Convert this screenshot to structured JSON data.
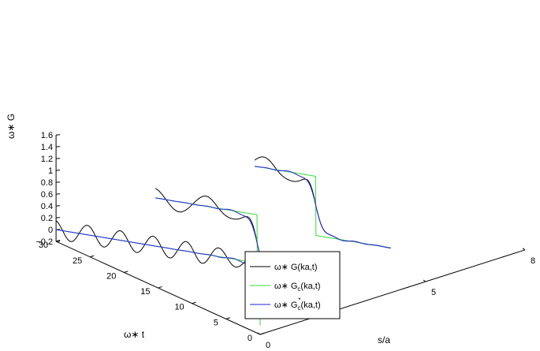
{
  "chart_data": {
    "type": "line",
    "title": "",
    "xlabel": "s/a",
    "ylabel": "ω∗ t",
    "zlabel": "ω∗ G",
    "xlim": [
      0,
      8
    ],
    "ylim": [
      0,
      30
    ],
    "zlim": [
      -0.2,
      1.6
    ],
    "x_ticks": [
      "0",
      "5",
      "8"
    ],
    "y_ticks": [
      "0",
      "5",
      "10",
      "15",
      "20",
      "25",
      "30"
    ],
    "z_ticks": [
      "−0.2",
      "0",
      "0.2",
      "0.4",
      "0.6",
      "0.8",
      "1",
      "1.2",
      "1.4",
      "1.6"
    ],
    "grid": false,
    "legend_position": "bottom-center",
    "legend": [
      {
        "prefix": "ω∗",
        "fn": "G",
        "sub": "",
        "sup": "",
        "args": "(ka,t)",
        "color": "#000000"
      },
      {
        "prefix": "ω∗",
        "fn": "G",
        "sub": "c",
        "sup": "",
        "args": "(ka,t)",
        "color": "#33dd33"
      },
      {
        "prefix": "ω∗",
        "fn": "G",
        "sub": "c",
        "sup": "*",
        "args": "(ka,t)",
        "color": "#2222dd"
      }
    ],
    "series": [
      {
        "name": "ω∗ G(ka,t)",
        "color": "#000000",
        "kind": "oscillating"
      },
      {
        "name": "ω∗ G_c(ka,t)",
        "color": "#33dd33",
        "kind": "step"
      },
      {
        "name": "ω∗ G_c^*(ka,t)",
        "color": "#2222dd",
        "kind": "smooth"
      }
    ],
    "slices": [
      {
        "s": 0,
        "t_range": [
          0,
          30
        ],
        "step_at_t": 0,
        "osc_cycles": 6.2,
        "osc_amp": 0.16
      },
      {
        "s": 3,
        "t_range": [
          5,
          30
        ],
        "step_at_t": 15,
        "osc_cycles": 3.2,
        "osc_amp": 0.17
      },
      {
        "s": 6,
        "t_range": [
          10,
          30
        ],
        "step_at_t": 21,
        "osc_cycles": 2.4,
        "osc_amp": 0.18
      }
    ]
  }
}
